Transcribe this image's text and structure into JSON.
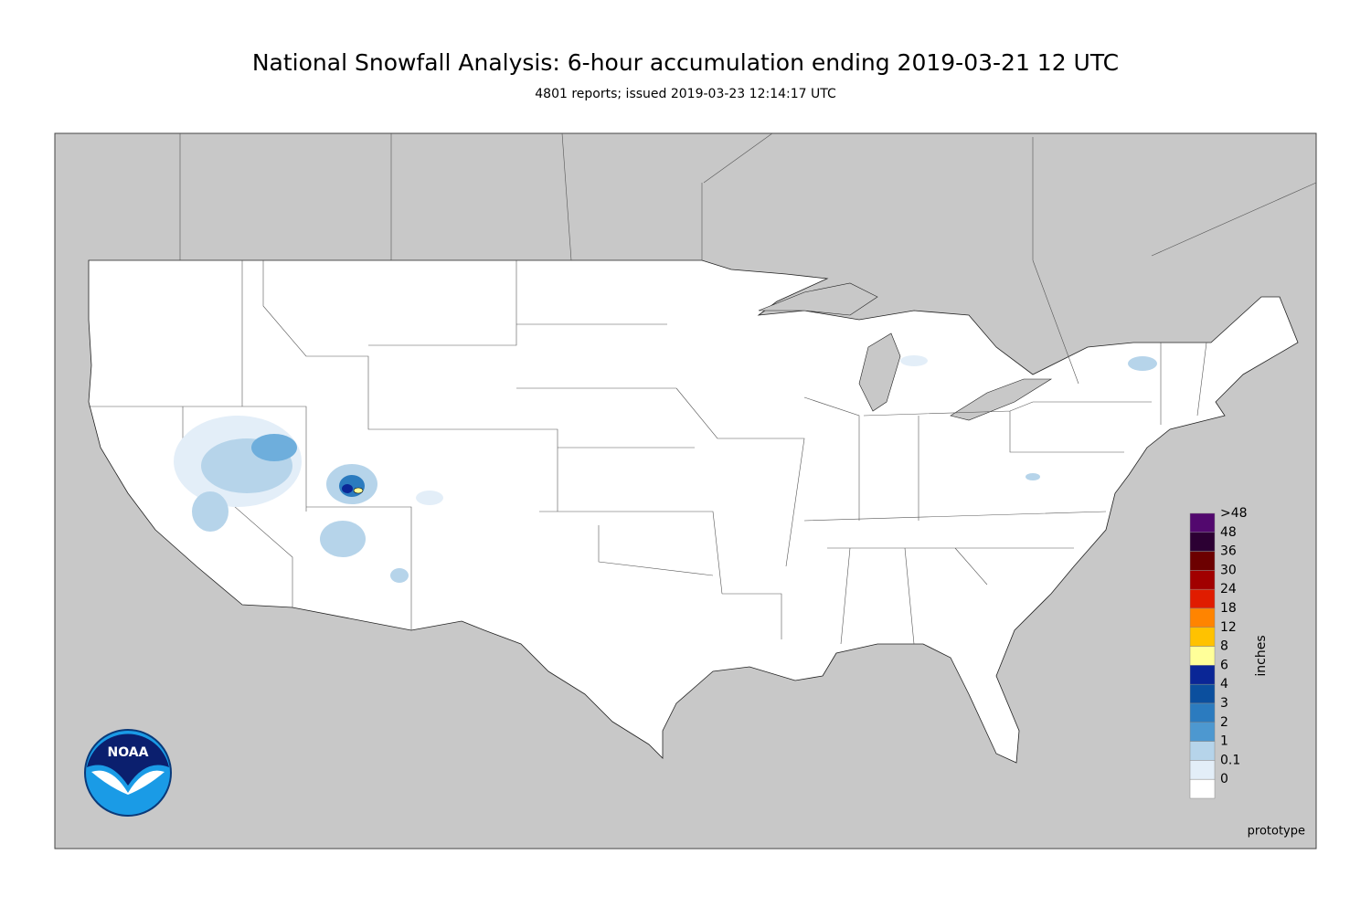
{
  "title": "National Snowfall Analysis: 6-hour accumulation ending 2019-03-21 12 UTC",
  "subtitle": "4801 reports; issued 2019-03-23 12:14:17 UTC",
  "legend": {
    "label": "inches",
    "items": [
      {
        "label": ">48",
        "color": "#52086e"
      },
      {
        "label": "48",
        "color": "#2c0033"
      },
      {
        "label": "36",
        "color": "#6c0000"
      },
      {
        "label": "30",
        "color": "#a10000"
      },
      {
        "label": "24",
        "color": "#e01c00"
      },
      {
        "label": "18",
        "color": "#ff8400"
      },
      {
        "label": "12",
        "color": "#ffc200"
      },
      {
        "label": "8",
        "color": "#ffff99"
      },
      {
        "label": "6",
        "color": "#0a2696"
      },
      {
        "label": "4",
        "color": "#0b4f9e"
      },
      {
        "label": "3",
        "color": "#2b7bbf"
      },
      {
        "label": "2",
        "color": "#4d98d0"
      },
      {
        "label": "1",
        "color": "#b6d4ea"
      },
      {
        "label": "0.1",
        "color": "#e3eef8"
      },
      {
        "label": "0",
        "color": "#ffffff"
      }
    ]
  },
  "footnote": "prototype",
  "logo": "NOAA"
}
